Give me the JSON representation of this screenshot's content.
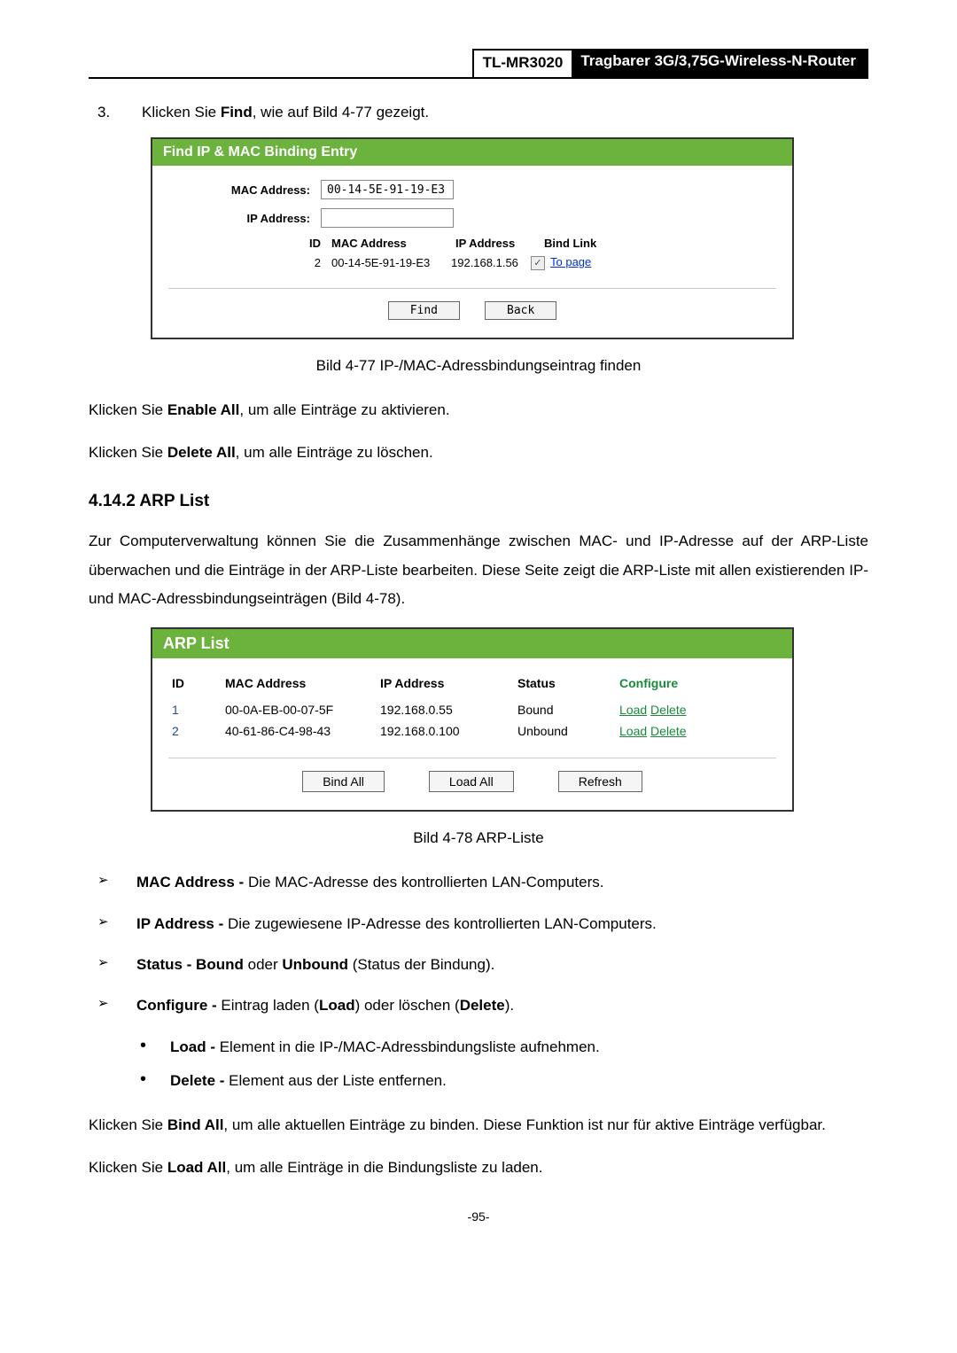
{
  "header": {
    "model": "TL-MR3020",
    "title": "Tragbarer 3G/3,75G-Wireless-N-Router"
  },
  "intro": {
    "num": "3.",
    "pre": "Klicken Sie ",
    "bold": "Find",
    "post": ", wie auf Bild 4-77 gezeigt."
  },
  "panel1": {
    "header_bg": "#6cb33e",
    "title": "Find IP & MAC Binding Entry",
    "mac_label": "MAC Address:",
    "mac_value": "00-14-5E-91-19-E3",
    "ip_label": "IP Address:",
    "ip_value": "",
    "cols": {
      "id": "ID",
      "mac": "MAC Address",
      "ip": "IP Address",
      "bind": "Bind Link"
    },
    "row": {
      "id": "2",
      "mac": "00-14-5E-91-19-E3",
      "ip": "192.168.1.56",
      "link": "To page"
    },
    "btn_find": "Find",
    "btn_back": "Back"
  },
  "caption1": "Bild 4-77 IP-/MAC-Adressbindungseintrag finden",
  "para_enable": {
    "pre": "Klicken Sie ",
    "bold": "Enable All",
    "post": ", um alle Einträge zu aktivieren."
  },
  "para_delete": {
    "pre": "Klicken Sie ",
    "bold": "Delete All",
    "post": ", um alle Einträge zu löschen."
  },
  "section": "4.14.2  ARP List",
  "arp_intro": "Zur Computerverwaltung können Sie die Zusammenhänge zwischen MAC- und IP-Adresse auf der ARP-Liste überwachen und die Einträge in der ARP-Liste bearbeiten. Diese Seite zeigt die ARP-Liste mit allen existierenden IP- und MAC-Adressbindungseinträgen (Bild 4-78).",
  "panel2": {
    "header_bg": "#6cb33e",
    "title": "ARP List",
    "cols": {
      "id": "ID",
      "mac": "MAC Address",
      "ip": "IP Address",
      "status": "Status",
      "conf": "Configure"
    },
    "rows": [
      {
        "id": "1",
        "mac": "00-0A-EB-00-07-5F",
        "ip": "192.168.0.55",
        "status": "Bound",
        "load": "Load",
        "delete": "Delete"
      },
      {
        "id": "2",
        "mac": "40-61-86-C4-98-43",
        "ip": "192.168.0.100",
        "status": "Unbound",
        "load": "Load",
        "delete": "Delete"
      }
    ],
    "btn_bind": "Bind All",
    "btn_load": "Load All",
    "btn_refresh": "Refresh"
  },
  "caption2": "Bild 4-78 ARP-Liste",
  "bullets": [
    {
      "bold": "MAC Address - ",
      "text": "Die MAC-Adresse des kontrollierten LAN-Computers."
    },
    {
      "bold": "IP Address - ",
      "text": "Die zugewiesene IP-Adresse des kontrollierten LAN-Computers."
    }
  ],
  "bullet_status": {
    "b1": "Status - Bound",
    "mid": " oder ",
    "b2": "Unbound",
    "post": " (Status der Bindung)."
  },
  "bullet_conf": {
    "b1": "Configure - ",
    "t1": "Eintrag laden (",
    "b2": "Load",
    "t2": ") oder löschen (",
    "b3": "Delete",
    "t3": ")."
  },
  "subs": [
    {
      "bold": "Load - ",
      "text": "Element in die IP-/MAC-Adressbindungsliste aufnehmen."
    },
    {
      "bold": "Delete - ",
      "text": "Element aus der Liste entfernen."
    }
  ],
  "para_bindall": {
    "pre": "Klicken Sie ",
    "bold": "Bind All",
    "post": ", um alle aktuellen Einträge zu binden. Diese Funktion ist nur für aktive Einträge verfügbar."
  },
  "para_loadall": {
    "pre": "Klicken Sie ",
    "bold": "Load All",
    "post": ", um alle Einträge in die Bindungsliste zu laden."
  },
  "page_num": "-95-",
  "colors": {
    "conf_link": "#1a8a3a",
    "id_blue": "#1a4a9a"
  }
}
